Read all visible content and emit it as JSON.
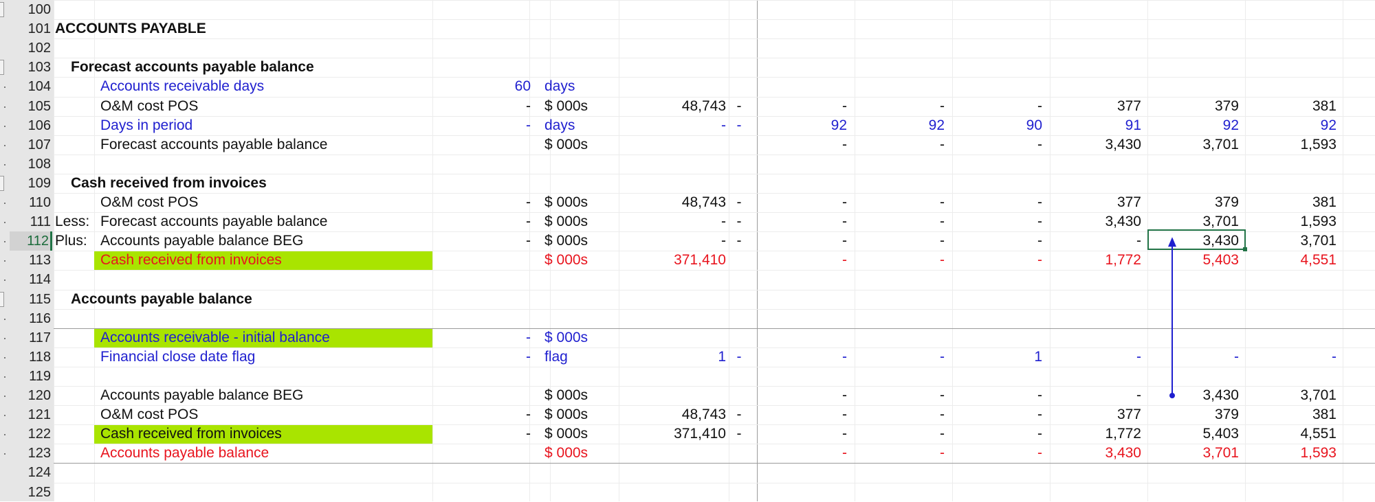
{
  "colors": {
    "input": "#1f1fcf",
    "output": "#e8141e",
    "text": "#111111",
    "highlight": "#a9e400",
    "selection": "#217346"
  },
  "selected_row": "112",
  "rows": [
    {
      "n": "100",
      "cells": {}
    },
    {
      "n": "101",
      "cells": {
        "a": "ACCOUNTS PAYABLE"
      },
      "style": "title"
    },
    {
      "n": "102",
      "cells": {}
    },
    {
      "n": "103",
      "cells": {
        "b": "Forecast accounts payable balance"
      },
      "style": "section"
    },
    {
      "n": "104",
      "color": "blue",
      "cells": {
        "c": "Accounts receivable days",
        "d": "60",
        "e": "days"
      }
    },
    {
      "n": "105",
      "color": "black",
      "cells": {
        "c": "O&M cost POS",
        "d": "-",
        "e": "$ 000s",
        "f": "48,743",
        "g": "-",
        "h": "-",
        "i": "-",
        "j": "-",
        "k": "377",
        "l": "379",
        "m": "381"
      }
    },
    {
      "n": "106",
      "color": "blue",
      "cells": {
        "c": "Days in period",
        "d": "-",
        "e": "days",
        "f": "-",
        "g": "-",
        "h": "92",
        "i": "92",
        "j": "90",
        "k": "91",
        "l": "92",
        "m": "92"
      }
    },
    {
      "n": "107",
      "color": "black",
      "cells": {
        "c": "Forecast accounts payable balance",
        "e": "$ 000s",
        "h": "-",
        "i": "-",
        "j": "-",
        "k": "3,430",
        "l": "3,701",
        "m": "1,593"
      }
    },
    {
      "n": "108",
      "cells": {}
    },
    {
      "n": "109",
      "cells": {
        "b": "Cash received from invoices"
      },
      "style": "section"
    },
    {
      "n": "110",
      "color": "black",
      "cells": {
        "c": "O&M cost POS",
        "d": "-",
        "e": "$ 000s",
        "f": "48,743",
        "g": "-",
        "h": "-",
        "i": "-",
        "j": "-",
        "k": "377",
        "l": "379",
        "m": "381"
      }
    },
    {
      "n": "111",
      "color": "black",
      "cells": {
        "a": "Less:",
        "c": "Forecast accounts payable balance",
        "d": "-",
        "e": "$ 000s",
        "f": "-",
        "g": "-",
        "h": "-",
        "i": "-",
        "j": "-",
        "k": "3,430",
        "l": "3,701",
        "m": "1,593"
      }
    },
    {
      "n": "112",
      "color": "black",
      "cells": {
        "a": "Plus:",
        "c": "Accounts payable balance BEG",
        "d": "-",
        "e": "$ 000s",
        "f": "-",
        "g": "-",
        "h": "-",
        "i": "-",
        "j": "-",
        "k": "-",
        "l": "3,430",
        "m": "3,701"
      }
    },
    {
      "n": "113",
      "color": "red",
      "highlight": true,
      "cells": {
        "c": "Cash received from invoices",
        "e": "$ 000s",
        "f": "371,410",
        "h": "-",
        "i": "-",
        "j": "-",
        "k": "1,772",
        "l": "5,403",
        "m": "4,551"
      }
    },
    {
      "n": "114",
      "cells": {}
    },
    {
      "n": "115",
      "cells": {
        "b": "Accounts payable balance"
      },
      "style": "section"
    },
    {
      "n": "116",
      "cells": {}
    },
    {
      "n": "117",
      "color": "blue",
      "highlight": true,
      "cells": {
        "c": "Accounts receivable - initial balance",
        "d": "-",
        "e": "$ 000s"
      }
    },
    {
      "n": "118",
      "color": "blue",
      "cells": {
        "c": "Financial close date flag",
        "d": "-",
        "e": "flag",
        "f": "1",
        "g": "-",
        "h": "-",
        "i": "-",
        "j": "1",
        "k": "-",
        "l": "-",
        "m": "-"
      }
    },
    {
      "n": "119",
      "cells": {}
    },
    {
      "n": "120",
      "color": "black",
      "cells": {
        "c": "Accounts payable balance BEG",
        "e": "$ 000s",
        "h": "-",
        "i": "-",
        "j": "-",
        "k": "-",
        "l": "3,430",
        "m": "3,701"
      }
    },
    {
      "n": "121",
      "color": "black",
      "cells": {
        "c": "O&M cost POS",
        "d": "-",
        "e": "$ 000s",
        "f": "48,743",
        "g": "-",
        "h": "-",
        "i": "-",
        "j": "-",
        "k": "377",
        "l": "379",
        "m": "381"
      }
    },
    {
      "n": "122",
      "color": "black",
      "highlight": true,
      "cells": {
        "c": "Cash received from invoices",
        "d": "-",
        "e": "$ 000s",
        "f": "371,410",
        "g": "-",
        "h": "-",
        "i": "-",
        "j": "-",
        "k": "1,772",
        "l": "5,403",
        "m": "4,551"
      }
    },
    {
      "n": "123",
      "color": "red",
      "cells": {
        "c": "Accounts payable balance",
        "e": "$ 000s",
        "h": "-",
        "i": "-",
        "j": "-",
        "k": "3,430",
        "l": "3,701",
        "m": "1,593"
      }
    },
    {
      "n": "124",
      "cells": {}
    },
    {
      "n": "125",
      "cells": {}
    }
  ],
  "trace_arrow": {
    "from_row": "120",
    "to_row": "112",
    "column": "l",
    "color": "#1f1fcf"
  }
}
